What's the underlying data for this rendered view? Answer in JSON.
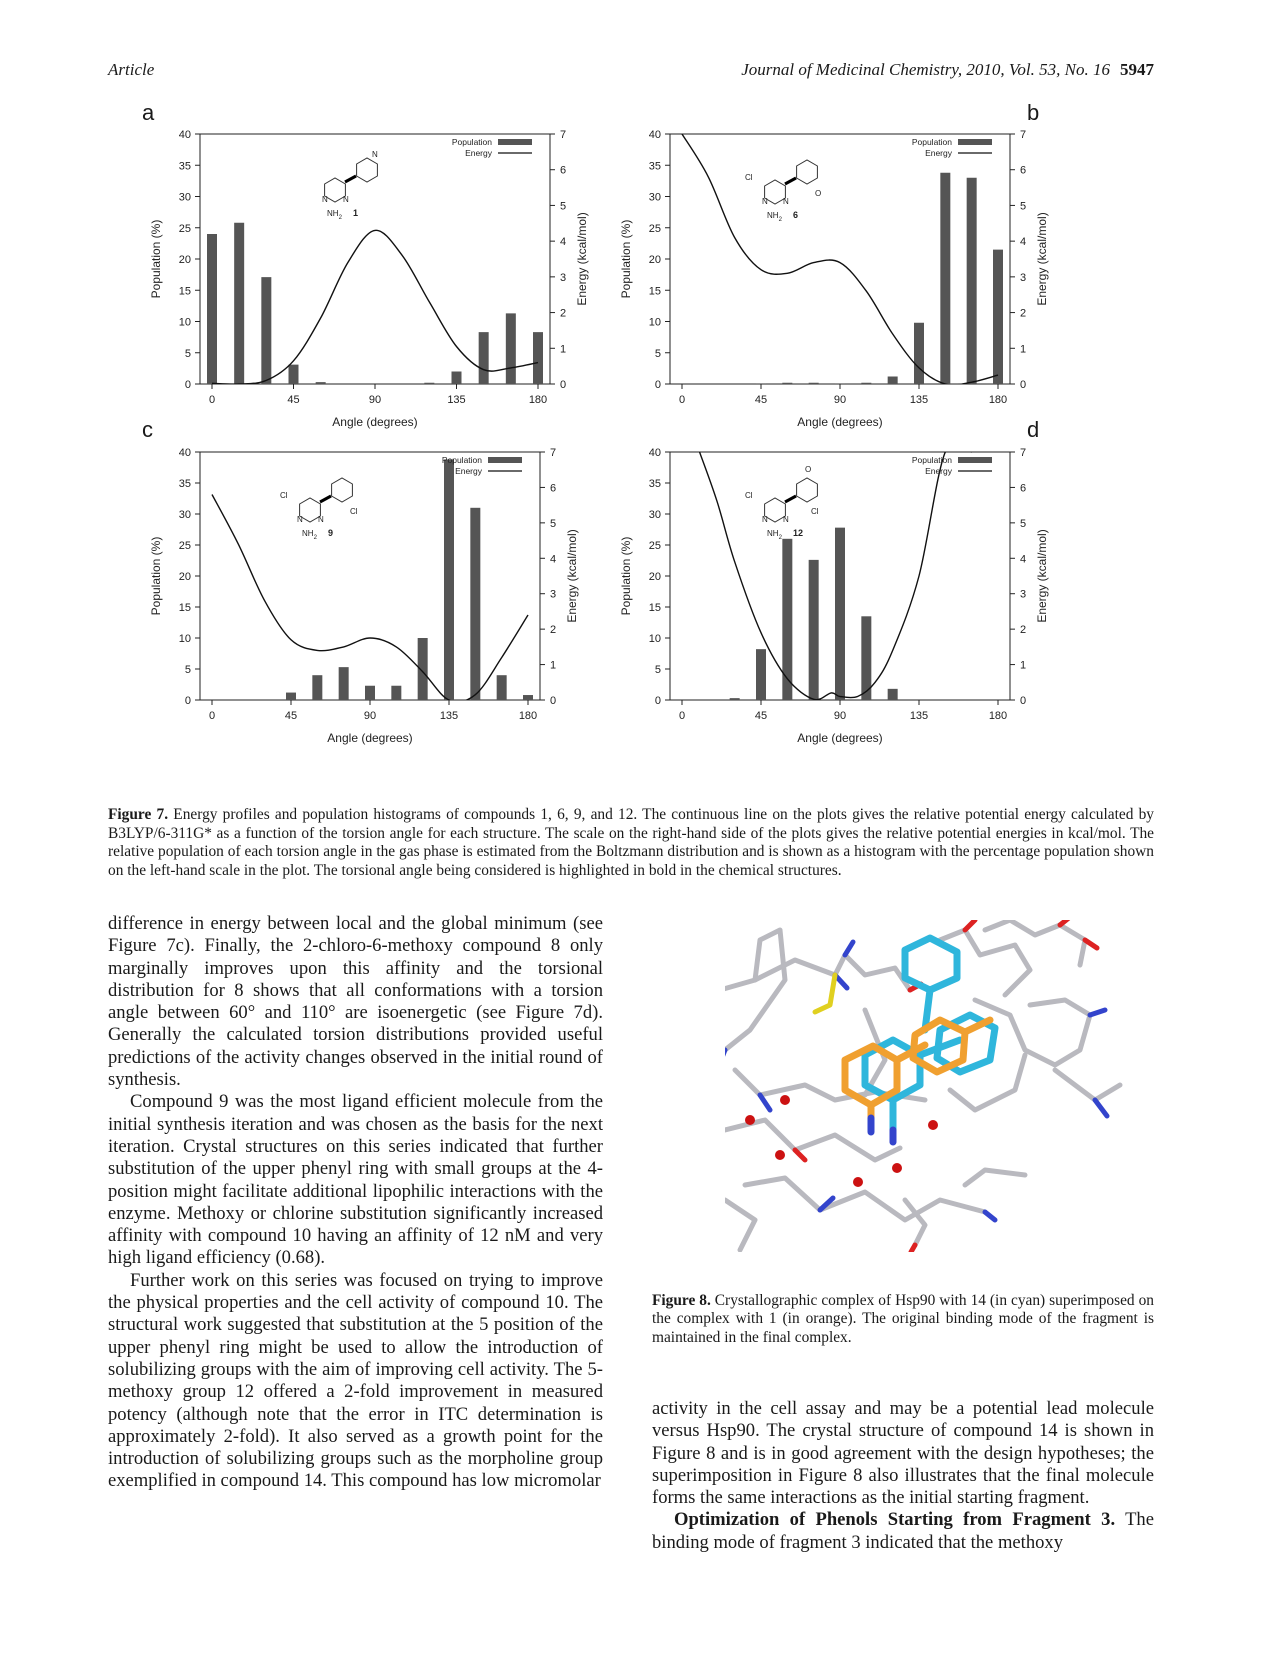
{
  "header": {
    "left": "Article",
    "journal": "Journal of Medicinal Chemistry, 2010, Vol. 53, No. 16",
    "page": "5947"
  },
  "figure7": {
    "panels": [
      {
        "letter": "a",
        "compound": "1",
        "legend": [
          "Population",
          "Energy"
        ],
        "ylabel_left": "Population (%)",
        "ylabel_right": "Energy (kcal/mol)",
        "xlabel": "Angle (degrees)",
        "show_right_label": true,
        "show_y_ticks_left": true
      },
      {
        "letter": "b",
        "compound": "6",
        "legend": [
          "Population",
          "Energy"
        ],
        "ylabel_left": "Population (%)",
        "ylabel_right": "Energy (kcal/mol)",
        "xlabel": "Angle (degrees)",
        "show_right_label": true,
        "show_y_ticks_left": true
      },
      {
        "letter": "c",
        "compound": "9",
        "legend": [
          "Population",
          "Energy"
        ],
        "ylabel_left": "Population (%)",
        "ylabel_right": "Energy (kcal/mol)",
        "xlabel": "Angle (degrees)",
        "show_right_label": true,
        "show_y_ticks_left": true
      },
      {
        "letter": "d",
        "compound": "12",
        "legend": [
          "Population",
          "Energy"
        ],
        "ylabel_left": "Population (%)",
        "ylabel_right": "Energy (kcal/mol)",
        "xlabel": "Angle (degrees)",
        "show_right_label": true,
        "show_y_ticks_left": true
      }
    ],
    "caption_label": "Figure 7.",
    "caption_text": "Energy profiles and population histograms of compounds 1, 6, 9, and 12. The continuous line on the plots gives the relative potential energy calculated by B3LYP/6-311G* as a function of the torsion angle for each structure. The scale on the right-hand side of the plots gives the relative potential energies in kcal/mol. The relative population of each torsion angle in the gas phase is estimated from the Boltzmann distribution and is shown as a histogram with the percentage population shown on the left-hand scale in the plot. The torsional angle being considered is highlighted in bold in the chemical structures."
  },
  "chart_data": [
    {
      "type": "bar",
      "panel": "a",
      "x": [
        0,
        15,
        30,
        45,
        60,
        75,
        90,
        105,
        120,
        135,
        150,
        165,
        180
      ],
      "series": [
        {
          "name": "Population",
          "axis": "left",
          "values": [
            24,
            25.8,
            17.1,
            3.1,
            0.3,
            0,
            0,
            0,
            0.2,
            2,
            8.3,
            11.3,
            8.3
          ]
        },
        {
          "name": "Energy",
          "axis": "right",
          "type": "line",
          "x": [
            0,
            15,
            30,
            45,
            60,
            75,
            90,
            105,
            120,
            135,
            150,
            165,
            180
          ],
          "values": [
            0.02,
            0,
            0.1,
            0.65,
            1.85,
            3.4,
            4.3,
            3.6,
            2.3,
            1.05,
            0.4,
            0.45,
            0.6
          ]
        }
      ],
      "xlim": [
        0,
        180
      ],
      "xticks": [
        0,
        45,
        90,
        135,
        180
      ],
      "ylim_left": [
        0,
        40
      ],
      "yticks_left": [
        0,
        5,
        10,
        15,
        20,
        25,
        30,
        35,
        40
      ],
      "ylim_right": [
        0,
        7
      ],
      "yticks_right": [
        0,
        1,
        2,
        3,
        4,
        5,
        6,
        7
      ],
      "xlabel": "Angle (degrees)",
      "ylabel": "Population (%)",
      "ylabel_right": "Energy (kcal/mol)"
    },
    {
      "type": "bar",
      "panel": "b",
      "x": [
        0,
        15,
        30,
        45,
        60,
        75,
        90,
        105,
        120,
        135,
        150,
        165,
        180
      ],
      "series": [
        {
          "name": "Population",
          "axis": "left",
          "values": [
            0,
            0,
            0,
            0.1,
            0.2,
            0.2,
            0.1,
            0.2,
            1.2,
            9.8,
            33.8,
            33,
            21.5
          ]
        },
        {
          "name": "Energy",
          "axis": "right",
          "type": "line",
          "x": [
            0,
            15,
            30,
            45,
            60,
            75,
            90,
            105,
            120,
            135,
            150,
            165,
            180
          ],
          "values": [
            7.0,
            5.8,
            4.1,
            3.2,
            3.1,
            3.4,
            3.4,
            2.6,
            1.4,
            0.45,
            0,
            0.05,
            0.25
          ]
        }
      ],
      "xlim": [
        0,
        180
      ],
      "xticks": [
        0,
        45,
        90,
        135,
        180
      ],
      "ylim_left": [
        0,
        40
      ],
      "yticks_left": [
        0,
        5,
        10,
        15,
        20,
        25,
        30,
        35,
        40
      ],
      "ylim_right": [
        0,
        7
      ],
      "yticks_right": [
        0,
        1,
        2,
        3,
        4,
        5,
        6,
        7
      ],
      "xlabel": "Angle (degrees)",
      "ylabel": "Population (%)",
      "ylabel_right": "Energy (kcal/mol)"
    },
    {
      "type": "bar",
      "panel": "c",
      "x": [
        0,
        15,
        30,
        45,
        60,
        75,
        90,
        105,
        120,
        135,
        150,
        165,
        180
      ],
      "series": [
        {
          "name": "Population",
          "axis": "left",
          "values": [
            0,
            0,
            0,
            1.2,
            4,
            5.3,
            2.3,
            2.3,
            10,
            38.8,
            31,
            4,
            0.8
          ]
        },
        {
          "name": "Energy",
          "axis": "right",
          "type": "line",
          "x": [
            0,
            15,
            30,
            45,
            60,
            75,
            90,
            105,
            120,
            135,
            150,
            165,
            180
          ],
          "values": [
            5.8,
            4.4,
            2.8,
            1.7,
            1.4,
            1.5,
            1.75,
            1.5,
            0.8,
            0,
            0.15,
            1.2,
            2.4
          ]
        }
      ],
      "xlim": [
        0,
        180
      ],
      "xticks": [
        0,
        45,
        90,
        135,
        180
      ],
      "ylim_left": [
        0,
        40
      ],
      "yticks_left": [
        0,
        5,
        10,
        15,
        20,
        25,
        30,
        35,
        40
      ],
      "ylim_right": [
        0,
        7
      ],
      "yticks_right": [
        0,
        1,
        2,
        3,
        4,
        5,
        6,
        7
      ],
      "xlabel": "Angle (degrees)",
      "ylabel": "Population (%)",
      "ylabel_right": "Energy (kcal/mol)"
    },
    {
      "type": "bar",
      "panel": "d",
      "x": [
        0,
        15,
        30,
        45,
        60,
        75,
        90,
        105,
        120,
        135,
        150,
        165,
        180
      ],
      "series": [
        {
          "name": "Population",
          "axis": "left",
          "values": [
            0,
            0,
            0.3,
            8.2,
            26,
            22.6,
            27.8,
            13.5,
            1.8,
            0,
            0,
            0,
            0
          ]
        },
        {
          "name": "Energy",
          "axis": "right",
          "type": "line",
          "x": [
            10,
            20,
            30,
            45,
            60,
            75,
            85,
            90,
            100,
            110,
            120,
            135,
            150,
            165
          ],
          "values": [
            7.0,
            5.6,
            3.9,
            1.9,
            0.6,
            0.02,
            0.2,
            0.1,
            0.1,
            0.5,
            1.4,
            3.5,
            7.0,
            7.0
          ]
        }
      ],
      "xlim": [
        0,
        180
      ],
      "xticks": [
        0,
        45,
        90,
        135,
        180
      ],
      "ylim_left": [
        0,
        40
      ],
      "yticks_left": [
        0,
        5,
        10,
        15,
        20,
        25,
        30,
        35,
        40
      ],
      "ylim_right": [
        0,
        7
      ],
      "yticks_right": [
        0,
        1,
        2,
        3,
        4,
        5,
        6,
        7
      ],
      "xlabel": "Angle (degrees)",
      "ylabel": "Population (%)",
      "ylabel_right": "Energy (kcal/mol)"
    }
  ],
  "structure_labels": {
    "nh2": "NH",
    "n": "N",
    "cl": "Cl",
    "o": "O"
  },
  "left_column": {
    "p1": "difference in energy between local and the global minimum (see Figure 7c). Finally, the 2-chloro-6-methoxy compound 8 only marginally improves upon this affinity and the torsional distribution for 8 shows that all conformations with a torsion angle between 60° and 110° are isoenergetic (see Figure 7d). Generally the calculated torsion distributions provided useful predictions of the activity changes observed in the initial round of synthesis.",
    "p2": "Compound 9 was the most ligand efficient molecule from the initial synthesis iteration and was chosen as the basis for the next iteration. Crystal structures on this series indicated that further substitution of the upper phenyl ring with small groups at the 4-position might facilitate additional lipophilic interactions with the enzyme. Methoxy or chlorine substitution significantly increased affinity with compound 10 having an affinity of 12 nM and very high ligand efficiency (0.68).",
    "p3": "Further work on this series was focused on trying to improve the physical properties and the cell activity of compound 10. The structural work suggested that substitution at the 5 position of the upper phenyl ring might be used to allow the introduction of solubilizing groups with the aim of improving cell activity. The 5-methoxy group 12 offered a 2-fold improvement in measured potency (although note that the error in ITC determination is approximately 2-fold). It also served as a growth point for the introduction of solubilizing groups such as the morpholine group exemplified in compound 14. This compound has low micromolar"
  },
  "figure8": {
    "caption_label": "Figure 8.",
    "caption_text": "Crystallographic complex of Hsp90 with 14 (in cyan) superimposed on the complex with 1 (in orange). The original binding mode of the fragment is maintained in the final complex."
  },
  "right_column": {
    "p1": "activity in the cell assay and may be a potential lead molecule versus Hsp90. The crystal structure of compound 14 is shown in Figure 8 and is in good agreement with the design hypotheses; the superimposition in Figure 8 also illustrates that the final molecule forms the same interactions as the initial starting fragment.",
    "heading": "Optimization of Phenols Starting from Fragment 3.",
    "p2": "The binding mode of fragment 3 indicated that the methoxy"
  },
  "colors": {
    "bar": "#555555",
    "line": "#111111",
    "cyan": "#2fb6dc",
    "orange": "#f0a030",
    "stick": "#b9b9bf",
    "nitrogen": "#3344cc",
    "oxygen": "#dd2222",
    "sulfur": "#e0d020",
    "water": "#cc1111"
  }
}
